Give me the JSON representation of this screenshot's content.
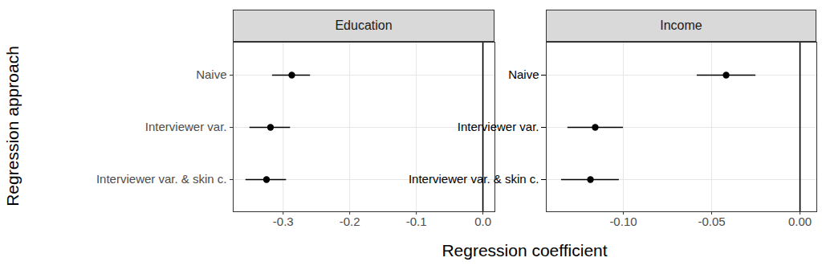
{
  "chart_data": {
    "type": "dot",
    "orientation": "horizontal",
    "xlabel": "Regression coefficient",
    "ylabel": "Regression approach",
    "categories": [
      "Naive",
      "Interviewer var.",
      "Interviewer var. & skin c."
    ],
    "panels": [
      {
        "title": "Education",
        "values": [
          -0.287,
          -0.319,
          -0.325
        ],
        "lower": [
          -0.316,
          -0.35,
          -0.356
        ],
        "upper": [
          -0.259,
          -0.289,
          -0.295
        ],
        "xlim": [
          -0.375,
          0.018
        ],
        "xticks": [
          -0.3,
          -0.2,
          -0.1,
          {
            "value": 0,
            "label": "0.0"
          }
        ],
        "reference_line": 0,
        "grid": true
      },
      {
        "title": "Income",
        "values": [
          -0.0418,
          -0.1159,
          -0.1186
        ],
        "lower": [
          -0.0582,
          -0.1314,
          -0.135
        ],
        "upper": [
          -0.025,
          -0.1,
          -0.1023
        ],
        "xlim": [
          -0.1436,
          0.0095
        ],
        "xticks": [
          {
            "value": -0.1,
            "label": "-0.10"
          },
          -0.05,
          {
            "value": 0,
            "label": "0.00"
          }
        ],
        "reference_line": 0,
        "grid": true
      }
    ]
  }
}
